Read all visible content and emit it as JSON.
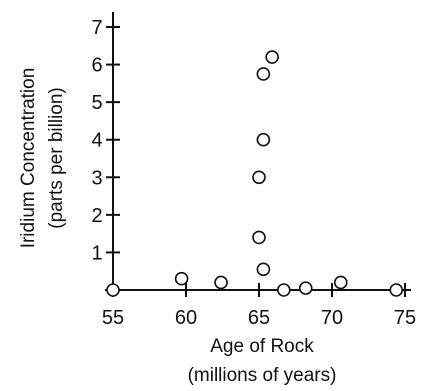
{
  "chart_data": {
    "type": "scatter",
    "title": "",
    "xlabel_lines": [
      "Age of Rock",
      "(millions of years)"
    ],
    "ylabel_lines": [
      "Iridium Concentration",
      "(parts per billion)"
    ],
    "xlim": [
      55,
      75
    ],
    "ylim": [
      0,
      7
    ],
    "x_ticks": [
      55,
      60,
      65,
      70,
      75
    ],
    "y_ticks": [
      1,
      2,
      3,
      4,
      5,
      6,
      7
    ],
    "grid": false,
    "legend": "none",
    "marker": "open-circle",
    "points": [
      {
        "x": 55.0,
        "y": 0.0
      },
      {
        "x": 59.7,
        "y": 0.3
      },
      {
        "x": 62.4,
        "y": 0.2
      },
      {
        "x": 65.0,
        "y": 1.4
      },
      {
        "x": 65.0,
        "y": 3.0
      },
      {
        "x": 65.3,
        "y": 4.0
      },
      {
        "x": 65.3,
        "y": 0.55
      },
      {
        "x": 65.3,
        "y": 5.75
      },
      {
        "x": 65.9,
        "y": 6.2
      },
      {
        "x": 66.7,
        "y": 0.0
      },
      {
        "x": 68.2,
        "y": 0.05
      },
      {
        "x": 70.6,
        "y": 0.2
      },
      {
        "x": 74.4,
        "y": 0.0
      }
    ]
  }
}
